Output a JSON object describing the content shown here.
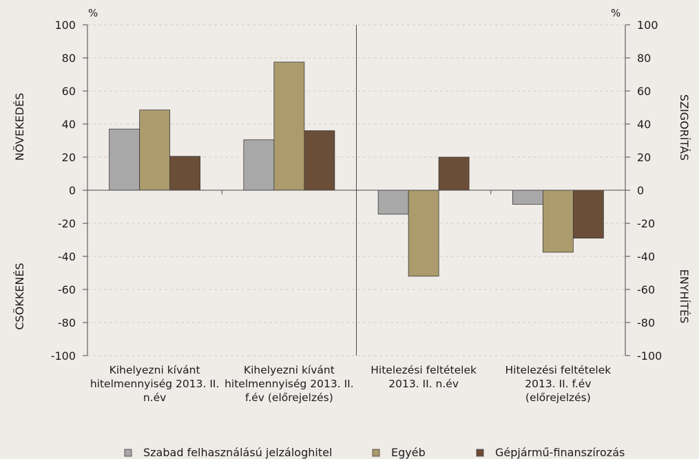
{
  "page": {
    "background": "#efebe7"
  },
  "chart_data": {
    "type": "bar",
    "categories": [
      [
        "Kihelyezni kívánt",
        "hitelmennyiség 2013. II.",
        "n.év"
      ],
      [
        "Kihelyezni kívánt",
        "hitelmennyiség 2013. II.",
        "f.év (előrejelzés)"
      ],
      [
        "Hitelezési feltételek",
        "2013. II. n.év"
      ],
      [
        "Hitelezési feltételek",
        "2013. II. f.év",
        "(előrejelzés)"
      ]
    ],
    "series": [
      {
        "name": "Szabad felhasználású jelzáloghitel",
        "color": "#a8a8a8",
        "values": [
          37,
          30.5,
          -14.5,
          -8.5
        ]
      },
      {
        "name": "Egyéb",
        "color": "#ab9b6d",
        "values": [
          48.5,
          77.5,
          -52,
          -37.5
        ]
      },
      {
        "name": "Gépjármű-finanszírozás",
        "color": "#6b4e38",
        "values": [
          20.5,
          36,
          20,
          -29
        ]
      }
    ],
    "ylim": [
      -100,
      100
    ],
    "y2lim": [
      -100,
      100
    ],
    "y_ticks": [
      100,
      80,
      60,
      40,
      20,
      0,
      -20,
      -40,
      -60,
      -80,
      -100
    ],
    "left_axis": {
      "unit": "%",
      "labels": [
        "NÖVEKEDÉS",
        "CSÖKKENÉS"
      ]
    },
    "right_axis": {
      "unit": "%",
      "labels": [
        "SZIGORÍTÁS",
        "ENYHÍTÉS"
      ]
    },
    "grid": true,
    "legend_position": "bottom"
  }
}
